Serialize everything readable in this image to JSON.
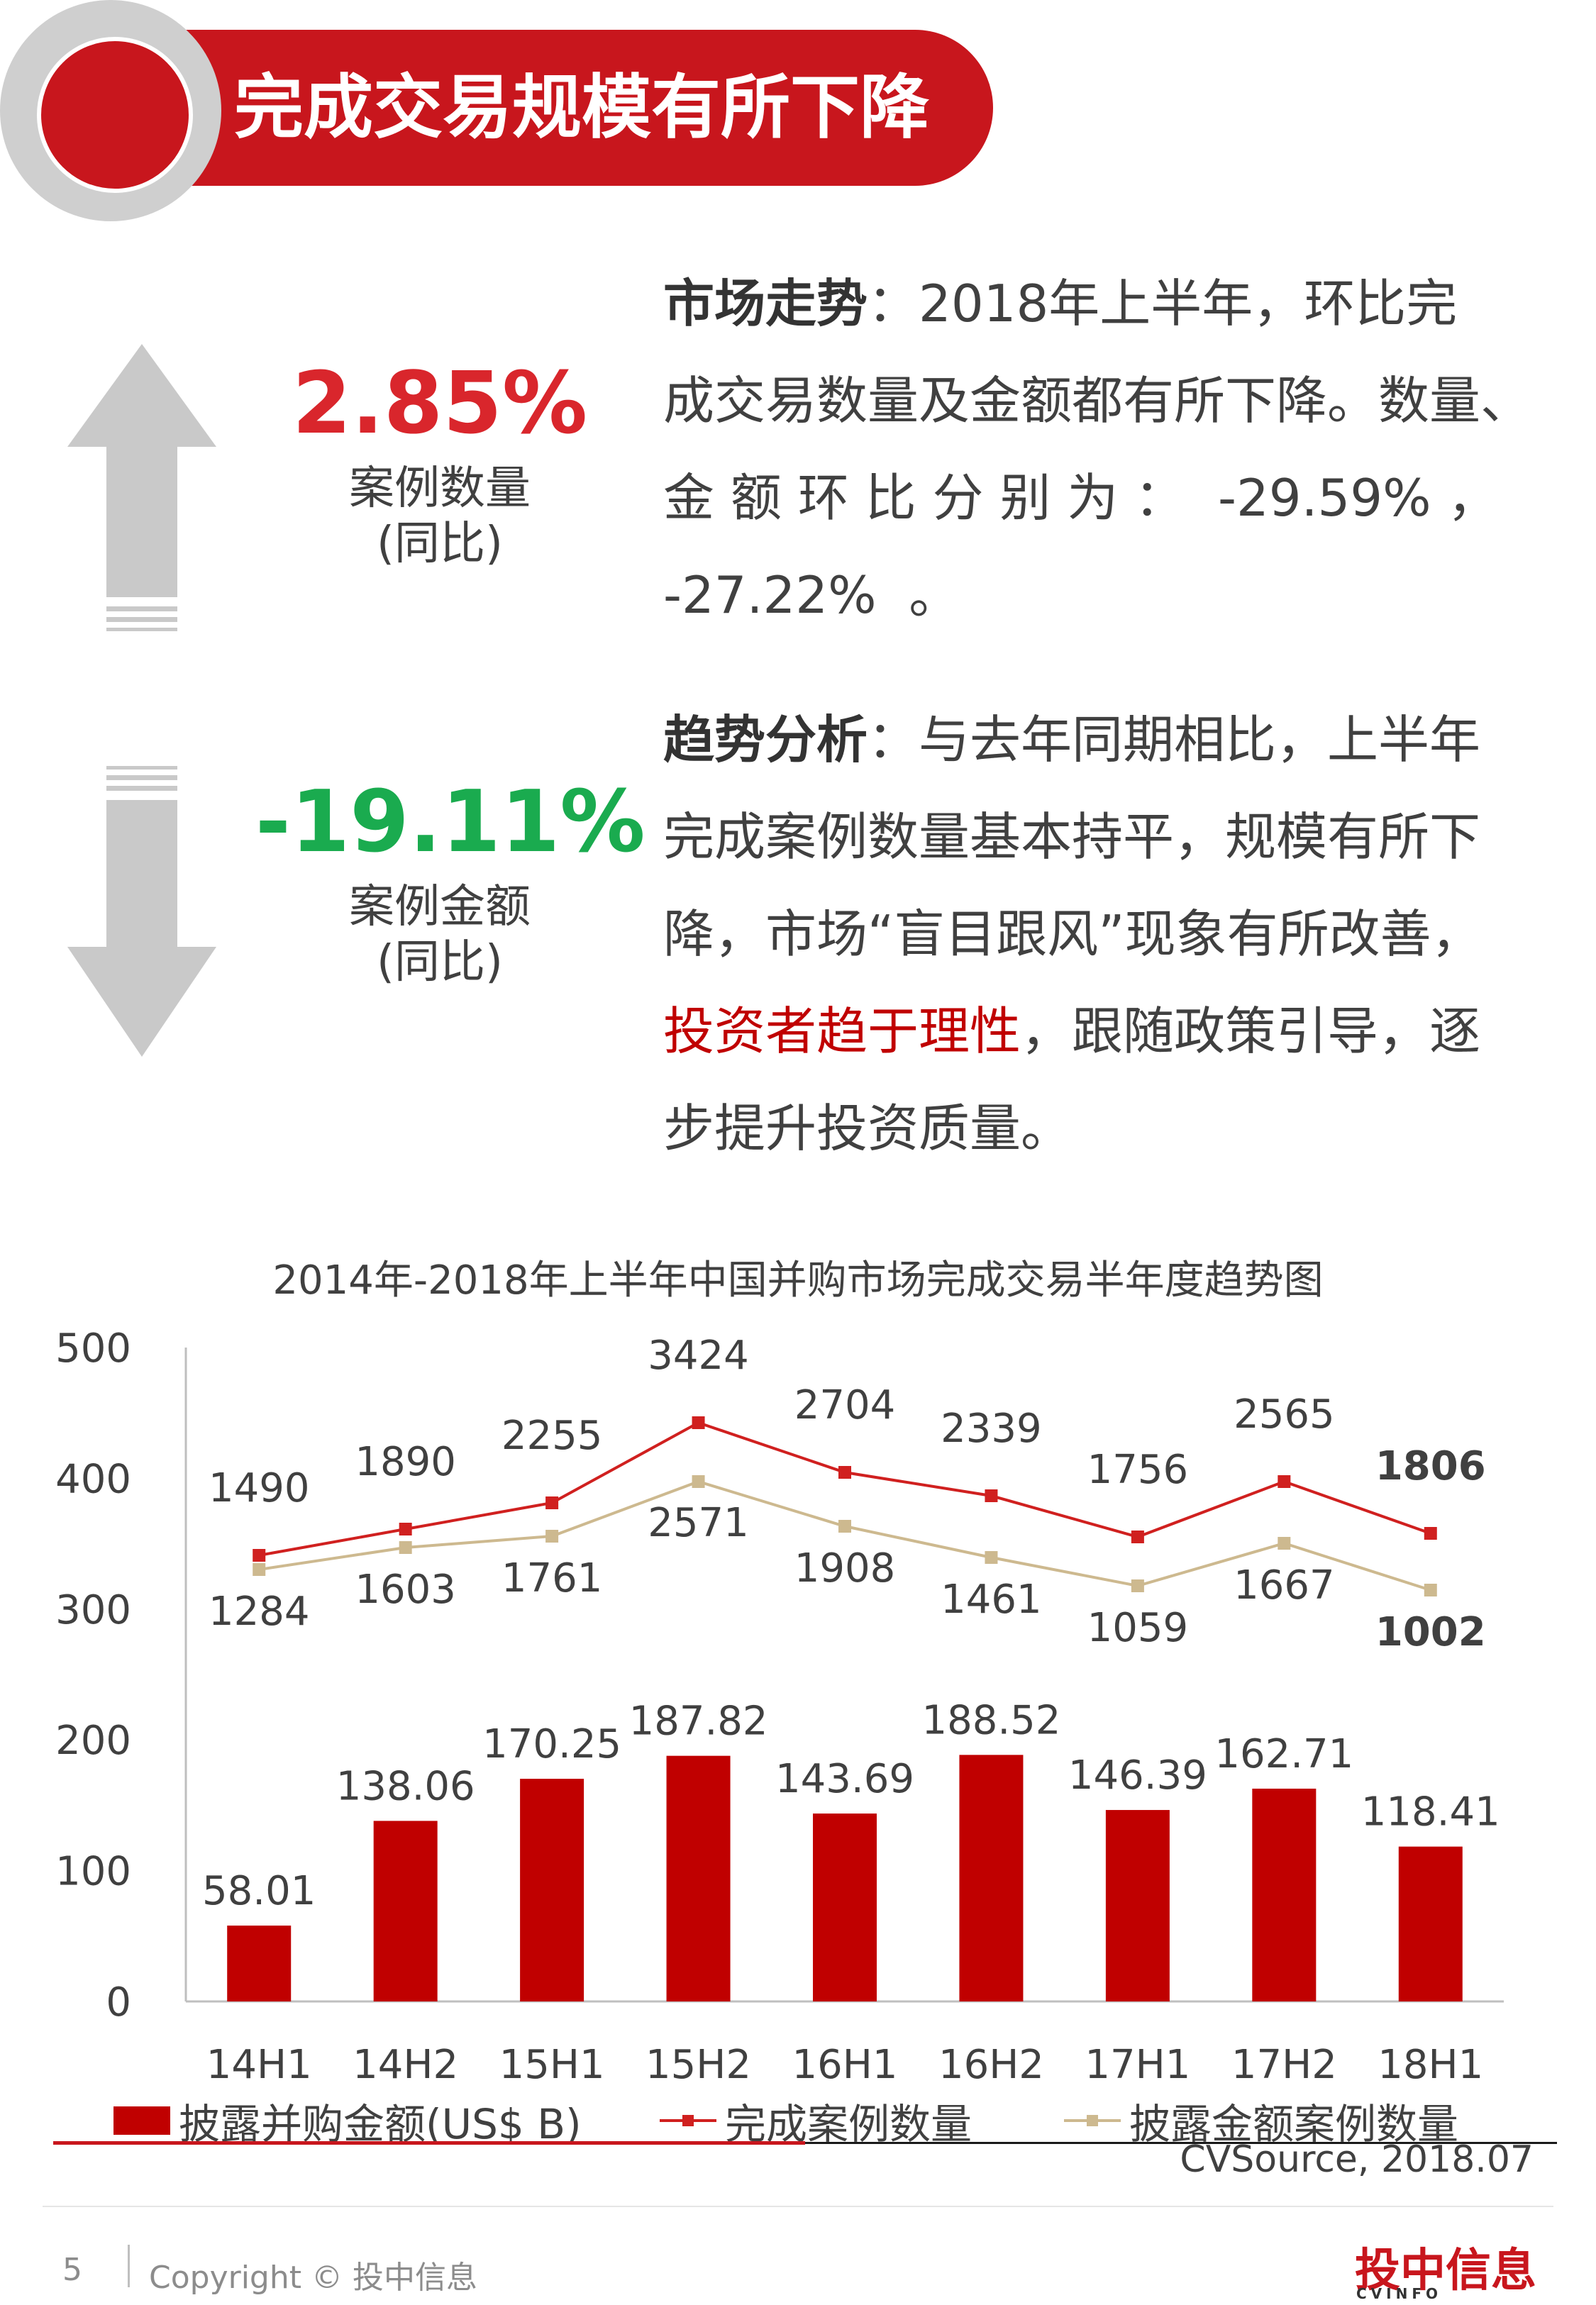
{
  "header": {
    "title": "完成交易规模有所下降"
  },
  "stats": [
    {
      "value": "2.85%",
      "label": "案例数量",
      "sub": "(同比)",
      "color": "#d9262c",
      "direction": "up"
    },
    {
      "value": "-19.11%",
      "label": "案例金额",
      "sub": "(同比)",
      "color": "#1aab4f",
      "direction": "down"
    }
  ],
  "para1": {
    "heading": "市场走势",
    "sep": "：",
    "lines": [
      "2018年上半年，环比完",
      "成交易数量及金额都有所下降。数量、",
      "金 额 环 比 分 别 为 ：  -29.59% ，",
      "-27.22%  。"
    ]
  },
  "para2": {
    "heading": "趋势分析",
    "sep": "：",
    "line1": "与去年同期相比，上半年",
    "line2": "完成案例数量基本持平，规模有所下",
    "line3": "降，市场“盲目跟风”现象有所改善，",
    "highlight": "投资者趋于理性",
    "line4_rest": "，跟随政策引导，逐",
    "line5": "步提升投资质量。"
  },
  "chart_data": {
    "type": "bar",
    "title": "2014年-2018年上半年中国并购市场完成交易半年度趋势图",
    "categories": [
      "14H1",
      "14H2",
      "15H1",
      "15H2",
      "16H1",
      "16H2",
      "17H1",
      "17H2",
      "18H1"
    ],
    "ylim": [
      0,
      500
    ],
    "yticks": [
      0,
      100,
      200,
      300,
      400,
      500
    ],
    "series": [
      {
        "name": "披露并购金额(US$ B)",
        "kind": "bar",
        "color": "#c00000",
        "values": [
          58.01,
          138.06,
          170.25,
          187.82,
          143.69,
          188.52,
          146.39,
          162.71,
          118.41
        ],
        "labels": [
          "58.01",
          "138.06",
          "170.25",
          "187.82",
          "143.69",
          "188.52",
          "146.39",
          "162.71",
          "118.41"
        ]
      },
      {
        "name": "完成案例数量",
        "kind": "line",
        "color": "#d0201f",
        "labels": [
          "1490",
          "1890",
          "2255",
          "3424",
          "2704",
          "2339",
          "1756",
          "2565",
          "1806"
        ]
      },
      {
        "name": "披露金额案例数量",
        "kind": "line",
        "color": "#cdb98f",
        "labels": [
          "1284",
          "1603",
          "1761",
          "2571",
          "1908",
          "1461",
          "1059",
          "1667",
          "1002"
        ]
      }
    ]
  },
  "source": "CVSource, 2018.07",
  "footer": {
    "page": "5",
    "copyright": "Copyright © 投中信息",
    "logo": "投中信息",
    "logo_sub": "CVINFO"
  }
}
